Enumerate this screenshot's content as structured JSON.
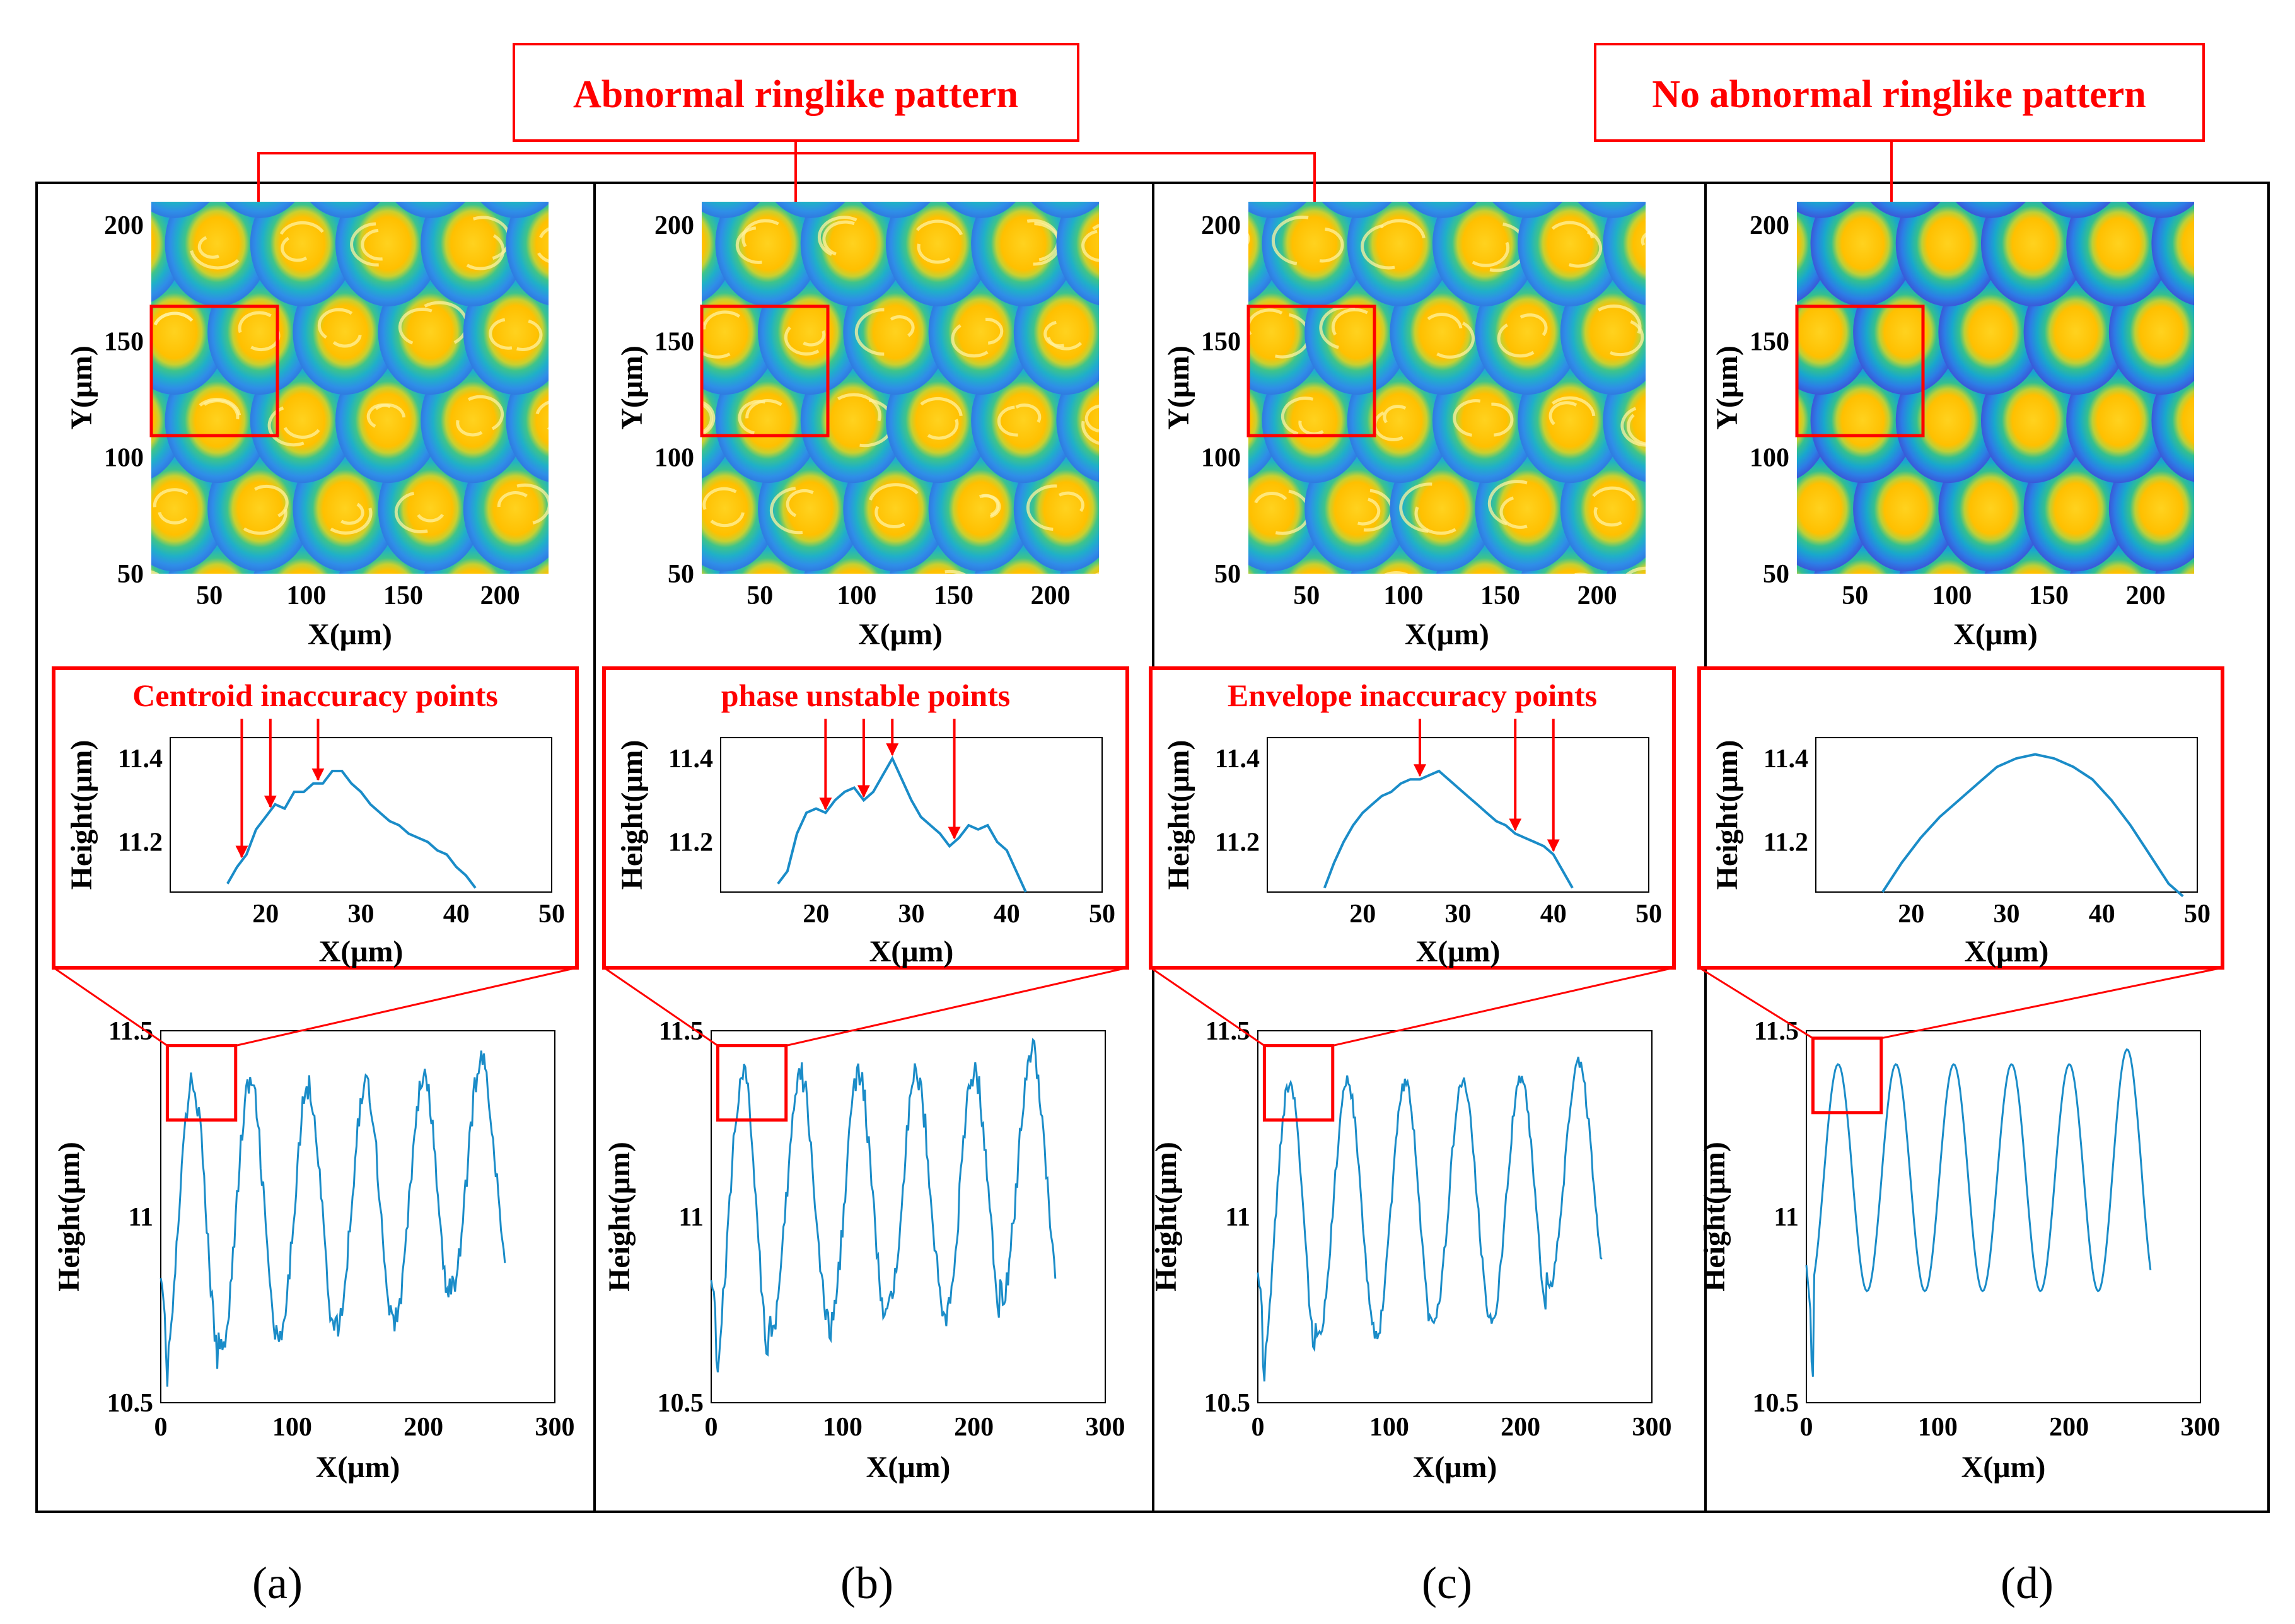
{
  "callouts": {
    "left": "Abnormal ringlike pattern",
    "right": "No abnormal ringlike pattern"
  },
  "panel_labels": [
    "(a)",
    "(b)",
    "(c)",
    "(d)"
  ],
  "colors": {
    "annotation": "#ff0000",
    "profile_line": "#1a8cc8",
    "panel_border": "#000000",
    "map_background": "#2a7de0",
    "map_peak": "#ffc000"
  },
  "inset_titles": [
    "Centroid inaccuracy points",
    "phase unstable points",
    "Envelope inaccuracy points",
    ""
  ],
  "chart_data": [
    {
      "type": "heatmap",
      "panel": "(a)",
      "description_of_axes": "top-view height maps of microlens array",
      "xlabel": "X(μm)",
      "ylabel": "Y(μm)",
      "xticks": [
        50,
        100,
        150,
        200
      ],
      "yticks": [
        50,
        100,
        150,
        200
      ],
      "xlim": [
        20,
        225
      ],
      "ylim": [
        50,
        210
      ],
      "colormap": "jet",
      "ringlike_pattern": true
    },
    {
      "type": "heatmap",
      "panel": "(b)",
      "xlabel": "X(μm)",
      "ylabel": "Y(μm)",
      "xticks": [
        50,
        100,
        150,
        200
      ],
      "yticks": [
        50,
        100,
        150,
        200
      ],
      "xlim": [
        20,
        225
      ],
      "ylim": [
        50,
        210
      ],
      "colormap": "jet",
      "ringlike_pattern": true
    },
    {
      "type": "heatmap",
      "panel": "(c)",
      "xlabel": "X(μm)",
      "ylabel": "Y(μm)",
      "xticks": [
        50,
        100,
        150,
        200
      ],
      "yticks": [
        50,
        100,
        150,
        200
      ],
      "xlim": [
        20,
        225
      ],
      "ylim": [
        50,
        210
      ],
      "colormap": "jet",
      "ringlike_pattern": true
    },
    {
      "type": "heatmap",
      "panel": "(d)",
      "xlabel": "X(μm)",
      "ylabel": "Y(μm)",
      "xticks": [
        50,
        100,
        150,
        200
      ],
      "yticks": [
        50,
        100,
        150,
        200
      ],
      "xlim": [
        20,
        225
      ],
      "ylim": [
        50,
        210
      ],
      "colormap": "jet",
      "ringlike_pattern": false
    },
    {
      "type": "line",
      "panel": "(a) inset",
      "title": "Centroid inaccuracy points",
      "xlabel": "X(μm)",
      "ylabel": "Height(μm)",
      "xlim": [
        10,
        50
      ],
      "ylim": [
        11.08,
        11.45
      ],
      "xticks": [
        20,
        30,
        40,
        50
      ],
      "yticks": [
        11.2,
        11.4
      ],
      "x": [
        16.0,
        17.0,
        18.0,
        19.0,
        20.0,
        21.0,
        22.0,
        23.0,
        24.0,
        25.0,
        26.0,
        27.0,
        28.0,
        29.0,
        30.0,
        31.0,
        32.0,
        33.0,
        34.0,
        35.0,
        36.0,
        37.0,
        38.0,
        39.0,
        40.0,
        41.0,
        42.0
      ],
      "y": [
        11.1,
        11.14,
        11.17,
        11.23,
        11.26,
        11.29,
        11.28,
        11.32,
        11.32,
        11.34,
        11.34,
        11.37,
        11.37,
        11.34,
        11.32,
        11.29,
        11.27,
        11.25,
        11.24,
        11.22,
        11.21,
        11.2,
        11.18,
        11.17,
        11.14,
        11.12,
        11.09
      ],
      "marked_x": [
        17.5,
        20.5,
        25.5
      ]
    },
    {
      "type": "line",
      "panel": "(b) inset",
      "title": "phase unstable points",
      "xlabel": "X(μm)",
      "ylabel": "Height(μm)",
      "xlim": [
        10,
        50
      ],
      "ylim": [
        11.08,
        11.45
      ],
      "xticks": [
        20,
        30,
        40,
        50
      ],
      "yticks": [
        11.2,
        11.4
      ],
      "x": [
        16.0,
        17.0,
        18.0,
        19.0,
        20.0,
        21.0,
        22.0,
        23.0,
        24.0,
        25.0,
        26.0,
        27.0,
        28.0,
        29.0,
        30.0,
        31.0,
        32.0,
        33.0,
        34.0,
        35.0,
        36.0,
        37.0,
        38.0,
        39.0,
        40.0,
        41.0,
        42.0
      ],
      "y": [
        11.1,
        11.13,
        11.22,
        11.27,
        11.28,
        11.27,
        11.3,
        11.32,
        11.33,
        11.3,
        11.32,
        11.36,
        11.4,
        11.35,
        11.3,
        11.26,
        11.24,
        11.22,
        11.19,
        11.21,
        11.24,
        11.23,
        11.24,
        11.2,
        11.18,
        11.13,
        11.08
      ],
      "marked_x": [
        21,
        25,
        28,
        34.5
      ]
    },
    {
      "type": "line",
      "panel": "(c) inset",
      "title": "Envelope inaccuracy points",
      "xlabel": "X(μm)",
      "ylabel": "Height(μm)",
      "xlim": [
        10,
        50
      ],
      "ylim": [
        11.08,
        11.45
      ],
      "xticks": [
        20,
        30,
        40,
        50
      ],
      "yticks": [
        11.2,
        11.4
      ],
      "x": [
        16.0,
        17.0,
        18.0,
        19.0,
        20.0,
        21.0,
        22.0,
        23.0,
        24.0,
        25.0,
        26.0,
        27.0,
        28.0,
        29.0,
        30.0,
        31.0,
        32.0,
        33.0,
        34.0,
        35.0,
        36.0,
        37.0,
        38.0,
        39.0,
        40.0,
        41.0,
        42.0
      ],
      "y": [
        11.09,
        11.15,
        11.2,
        11.24,
        11.27,
        11.29,
        11.31,
        11.32,
        11.34,
        11.35,
        11.35,
        11.36,
        11.37,
        11.35,
        11.33,
        11.31,
        11.29,
        11.27,
        11.25,
        11.24,
        11.22,
        11.21,
        11.2,
        11.19,
        11.17,
        11.13,
        11.09
      ],
      "marked_x": [
        26,
        36,
        40
      ]
    },
    {
      "type": "line",
      "panel": "(d) inset",
      "xlabel": "X(μm)",
      "ylabel": "Height(μm)",
      "xlim": [
        10,
        50
      ],
      "ylim": [
        11.08,
        11.45
      ],
      "xticks": [
        20,
        30,
        40,
        50
      ],
      "yticks": [
        11.2,
        11.4
      ],
      "x": [
        17.0,
        19.0,
        21.0,
        23.0,
        25.0,
        27.0,
        29.0,
        31.0,
        33.0,
        35.0,
        37.0,
        39.0,
        41.0,
        43.0,
        45.0,
        47.0,
        48.5
      ],
      "y": [
        11.08,
        11.15,
        11.21,
        11.26,
        11.3,
        11.34,
        11.38,
        11.4,
        11.41,
        11.4,
        11.38,
        11.35,
        11.3,
        11.24,
        11.17,
        11.1,
        11.07
      ],
      "marked_x": []
    },
    {
      "type": "line",
      "panel": "(a) profile",
      "xlabel": "X(μm)",
      "ylabel": "Height(μm)",
      "xlim": [
        0,
        300
      ],
      "ylim": [
        10.5,
        11.5
      ],
      "xticks": [
        0,
        100,
        200,
        300
      ],
      "yticks": [
        10.5,
        11,
        11.5
      ],
      "period": 44,
      "x_end": 262,
      "peaks": [
        11.36,
        11.36,
        11.35,
        11.36,
        11.37,
        11.42
      ],
      "valleys": [
        10.58,
        10.65,
        10.66,
        10.7,
        10.72,
        10.82
      ],
      "noise": 0.035,
      "zoom_box": {
        "x": [
          5,
          57
        ],
        "y": [
          11.26,
          11.46
        ]
      }
    },
    {
      "type": "line",
      "panel": "(b) profile",
      "xlabel": "X(μm)",
      "ylabel": "Height(μm)",
      "xlim": [
        0,
        300
      ],
      "ylim": [
        10.5,
        11.5
      ],
      "xticks": [
        0,
        100,
        200,
        300
      ],
      "yticks": [
        10.5,
        11,
        11.5
      ],
      "period": 44,
      "x_end": 262,
      "peaks": [
        11.38,
        11.38,
        11.38,
        11.38,
        11.39,
        11.45
      ],
      "valleys": [
        10.6,
        10.7,
        10.7,
        10.74,
        10.73,
        10.8
      ],
      "noise": 0.04,
      "zoom_box": {
        "x": [
          5,
          57
        ],
        "y": [
          11.26,
          11.46
        ]
      }
    },
    {
      "type": "line",
      "panel": "(c) profile",
      "xlabel": "X(μm)",
      "ylabel": "Height(μm)",
      "xlim": [
        0,
        300
      ],
      "ylim": [
        10.5,
        11.5
      ],
      "xticks": [
        0,
        100,
        200,
        300
      ],
      "yticks": [
        10.5,
        11,
        11.5
      ],
      "period": 44,
      "x_end": 262,
      "peaks": [
        11.36,
        11.36,
        11.36,
        11.36,
        11.37,
        11.41
      ],
      "valleys": [
        10.6,
        10.68,
        10.68,
        10.72,
        10.73,
        10.82
      ],
      "noise": 0.02,
      "zoom_box": {
        "x": [
          5,
          57
        ],
        "y": [
          11.26,
          11.46
        ]
      }
    },
    {
      "type": "line",
      "panel": "(d) profile",
      "xlabel": "X(μm)",
      "ylabel": "Height(μm)",
      "xlim": [
        0,
        300
      ],
      "ylim": [
        10.5,
        11.5
      ],
      "xticks": [
        0,
        100,
        200,
        300
      ],
      "yticks": [
        10.5,
        11,
        11.5
      ],
      "period": 44,
      "x_end": 262,
      "peaks": [
        11.41,
        11.41,
        11.41,
        11.41,
        11.41,
        11.45
      ],
      "valleys": [
        10.8,
        10.8,
        10.8,
        10.8,
        10.8,
        10.8
      ],
      "noise": 0.0,
      "zoom_box": {
        "x": [
          5,
          57
        ],
        "y": [
          11.28,
          11.48
        ]
      }
    }
  ]
}
